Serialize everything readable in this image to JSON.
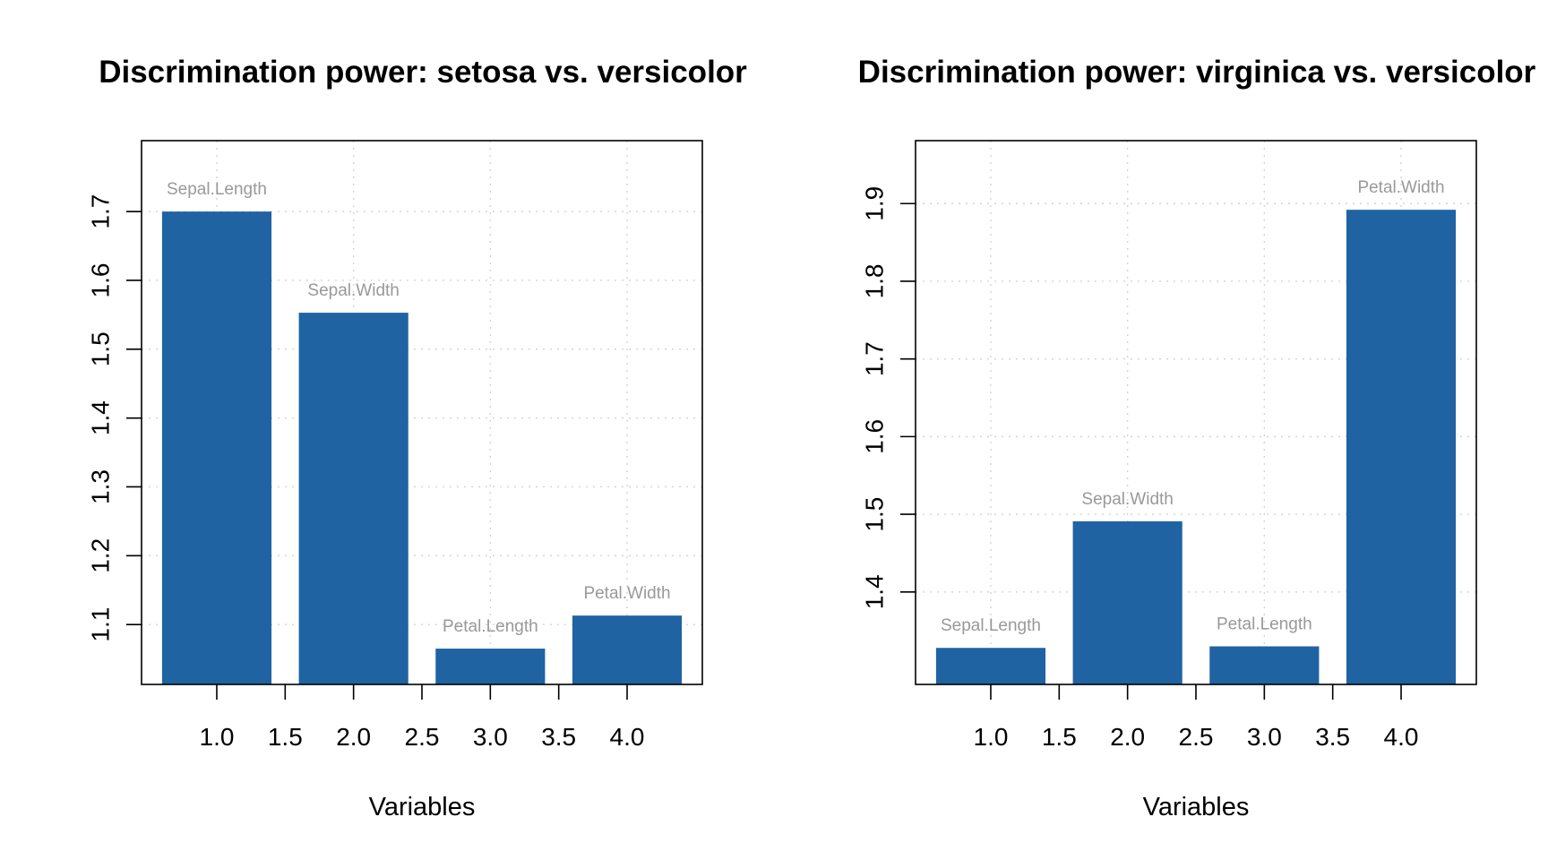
{
  "chart_data": [
    {
      "type": "bar",
      "title": "Discrimination power: setosa vs. versicolor",
      "xlabel": "Variables",
      "ylabel": "",
      "categories": [
        "Sepal.Length",
        "Sepal.Width",
        "Petal.Length",
        "Petal.Width"
      ],
      "x": [
        1.0,
        2.0,
        3.0,
        4.0
      ],
      "values": [
        1.7,
        1.553,
        1.065,
        1.113
      ],
      "xlim": [
        0.45,
        4.55
      ],
      "ylim": [
        1.013,
        1.803
      ],
      "x_ticks": [
        1.0,
        1.5,
        2.0,
        2.5,
        3.0,
        3.5,
        4.0
      ],
      "x_tick_labels": [
        "1.0",
        "1.5",
        "2.0",
        "2.5",
        "3.0",
        "3.5",
        "4.0"
      ],
      "y_ticks": [
        1.1,
        1.2,
        1.3,
        1.4,
        1.5,
        1.6,
        1.7
      ],
      "y_tick_labels": [
        "1.1",
        "1.2",
        "1.3",
        "1.4",
        "1.5",
        "1.6",
        "1.7"
      ],
      "grid": true,
      "bar_color": "#1f63a3",
      "label_color": "#999999"
    },
    {
      "type": "bar",
      "title": "Discrimination power: virginica vs. versicolor",
      "xlabel": "Variables",
      "ylabel": "",
      "categories": [
        "Sepal.Length",
        "Sepal.Width",
        "Petal.Length",
        "Petal.Width"
      ],
      "x": [
        1.0,
        2.0,
        3.0,
        4.0
      ],
      "values": [
        1.328,
        1.491,
        1.33,
        1.892
      ],
      "xlim": [
        0.45,
        4.55
      ],
      "ylim": [
        1.281,
        1.981
      ],
      "x_ticks": [
        1.0,
        1.5,
        2.0,
        2.5,
        3.0,
        3.5,
        4.0
      ],
      "x_tick_labels": [
        "1.0",
        "1.5",
        "2.0",
        "2.5",
        "3.0",
        "3.5",
        "4.0"
      ],
      "y_ticks": [
        1.4,
        1.5,
        1.6,
        1.7,
        1.8,
        1.9
      ],
      "y_tick_labels": [
        "1.4",
        "1.5",
        "1.6",
        "1.7",
        "1.8",
        "1.9"
      ],
      "grid": true,
      "bar_color": "#1f63a3",
      "label_color": "#999999"
    }
  ]
}
